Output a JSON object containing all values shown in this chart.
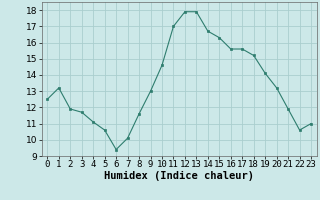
{
  "x": [
    0,
    1,
    2,
    3,
    4,
    5,
    6,
    7,
    8,
    9,
    10,
    11,
    12,
    13,
    14,
    15,
    16,
    17,
    18,
    19,
    20,
    21,
    22,
    23
  ],
  "y": [
    12.5,
    13.2,
    11.9,
    11.7,
    11.1,
    10.6,
    9.4,
    10.1,
    11.6,
    13.0,
    14.6,
    17.0,
    17.9,
    17.9,
    16.7,
    16.3,
    15.6,
    15.6,
    15.2,
    14.1,
    13.2,
    11.9,
    10.6,
    11.0
  ],
  "line_color": "#2e7d6e",
  "marker_color": "#2e7d6e",
  "bg_color": "#cce8e8",
  "grid_color": "#aacece",
  "xlabel": "Humidex (Indice chaleur)",
  "ylim": [
    9,
    18.5
  ],
  "xlim": [
    -0.5,
    23.5
  ],
  "yticks": [
    9,
    10,
    11,
    12,
    13,
    14,
    15,
    16,
    17,
    18
  ],
  "xtick_labels": [
    "0",
    "1",
    "2",
    "3",
    "4",
    "5",
    "6",
    "7",
    "8",
    "9",
    "10",
    "11",
    "12",
    "13",
    "14",
    "15",
    "16",
    "17",
    "18",
    "19",
    "20",
    "21",
    "22",
    "23"
  ],
  "font_size_xlabel": 7.5,
  "font_size_ticks": 6.5
}
